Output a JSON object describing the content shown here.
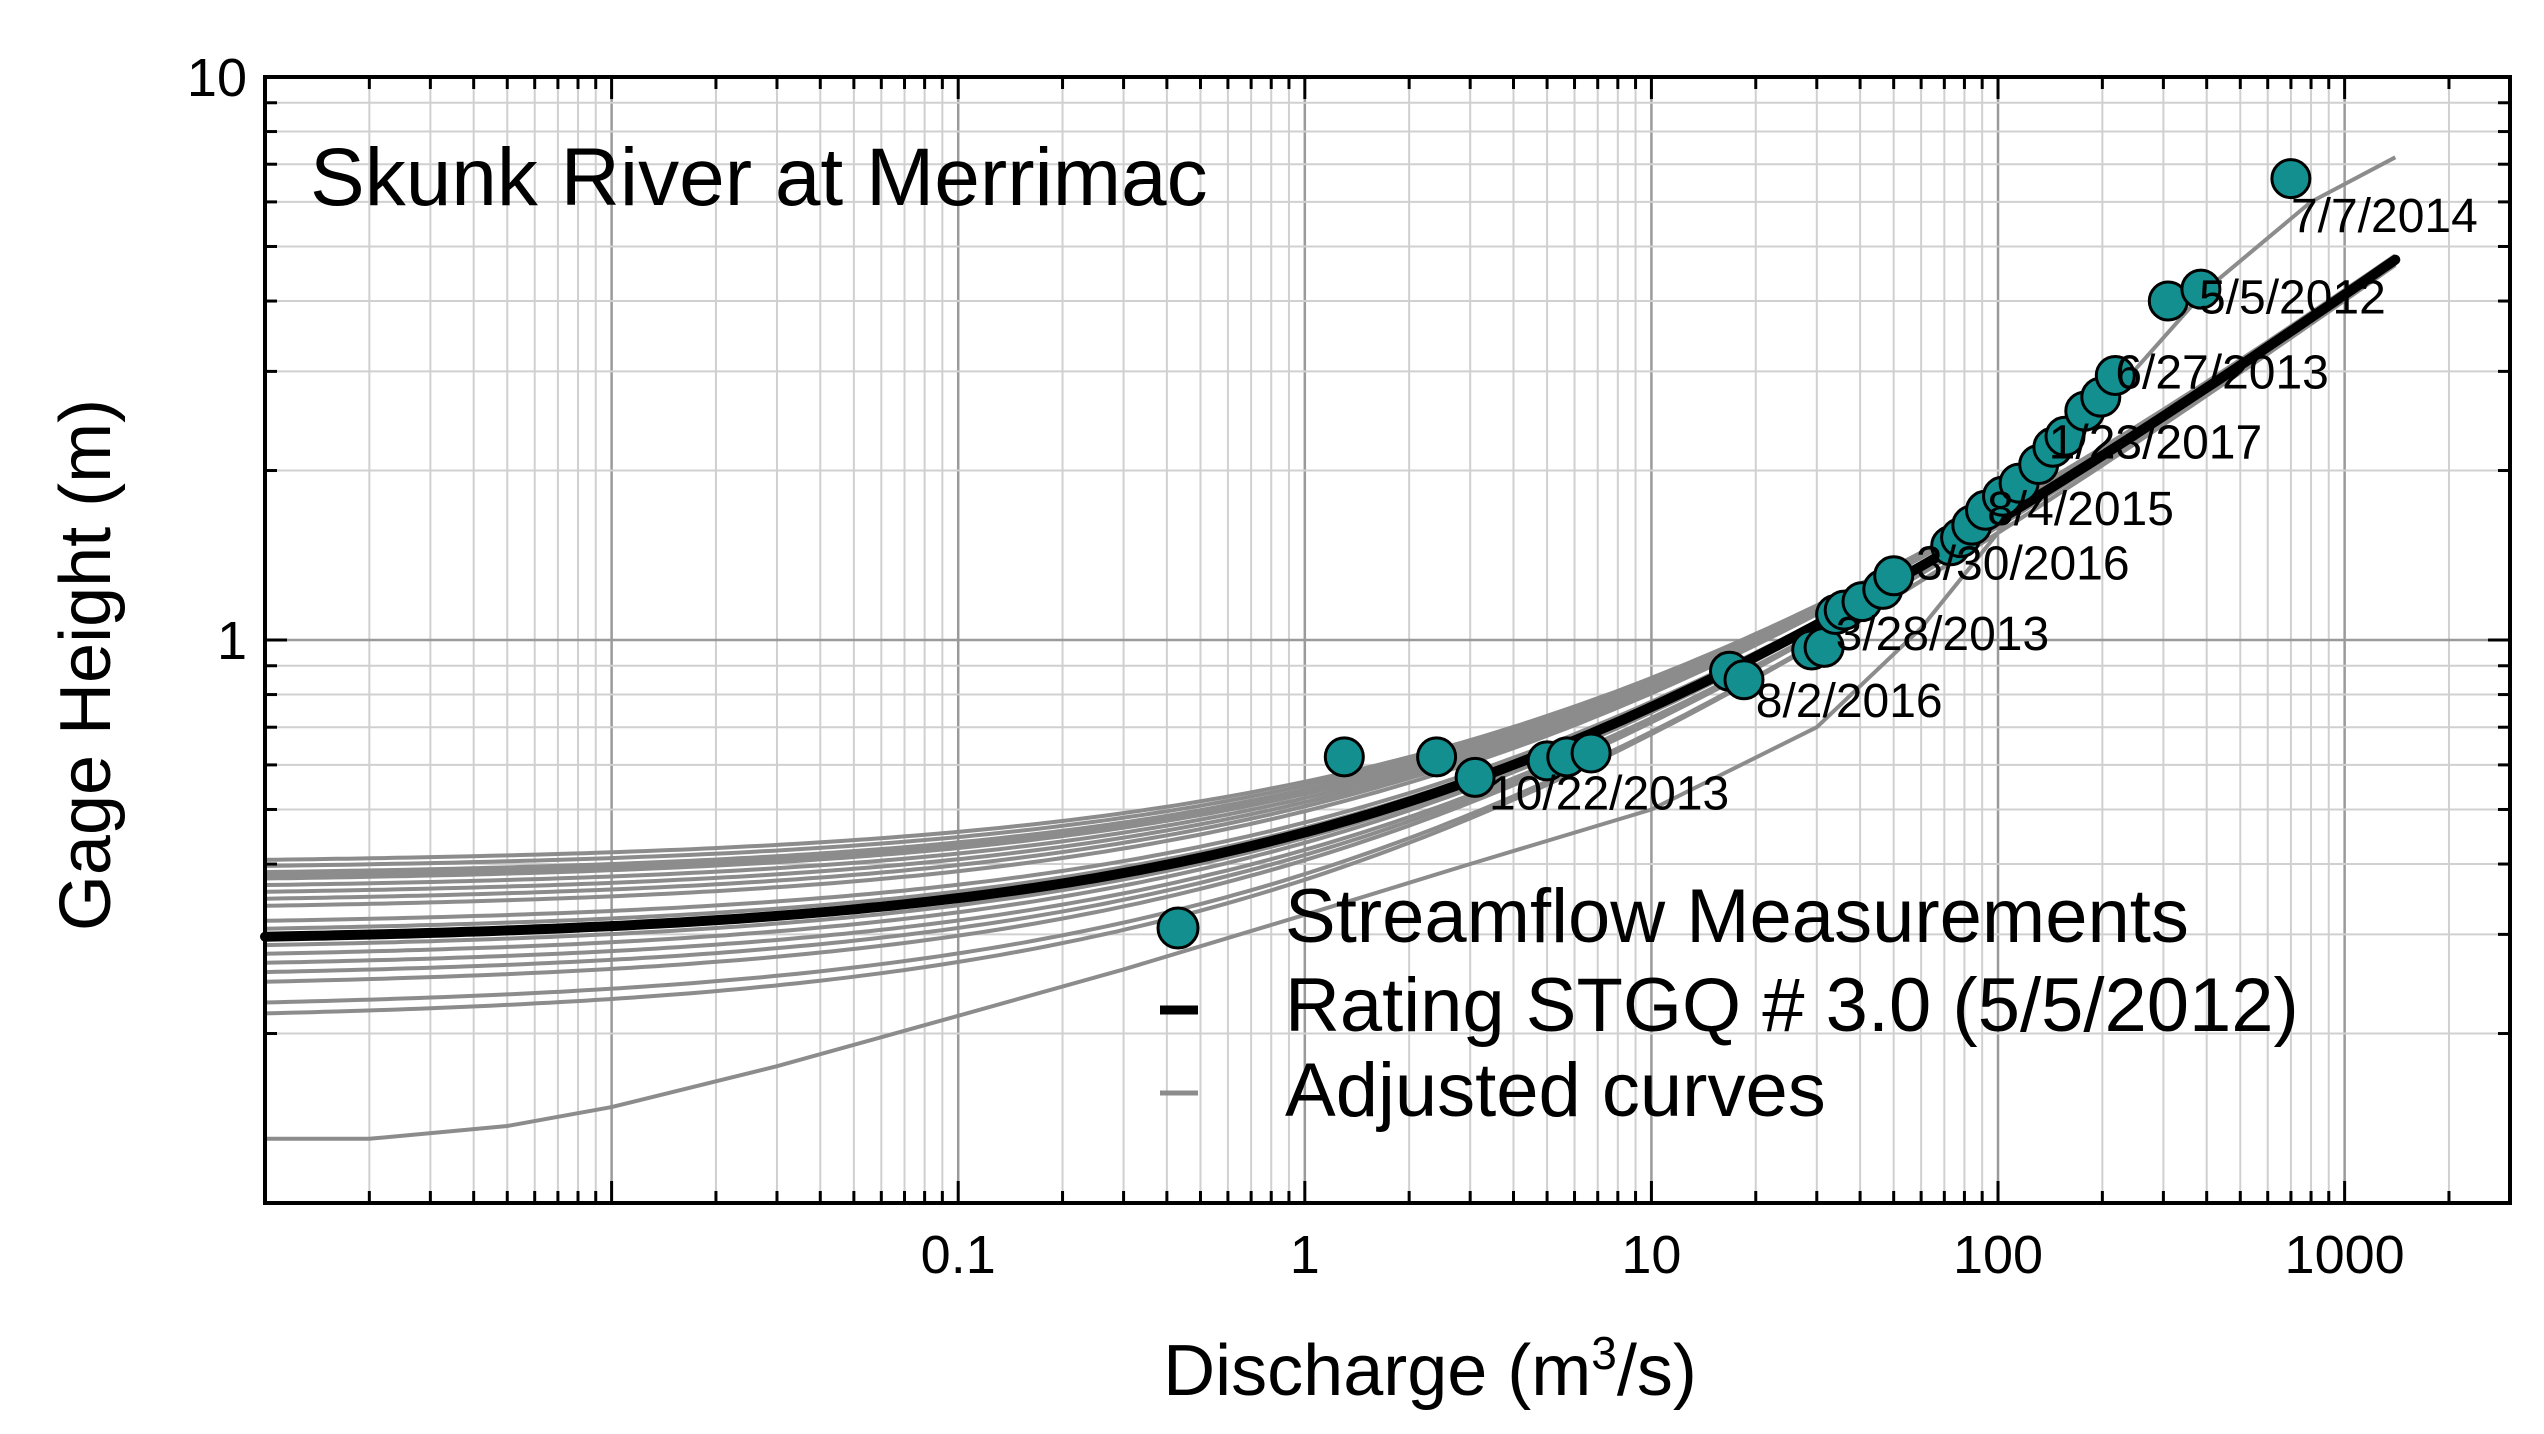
{
  "chart_data": {
    "type": "scatter",
    "title": "Skunk River at Merrimac",
    "xlabel": "Discharge (m³/s)",
    "xlabel_parts": {
      "pre": "Discharge (m",
      "sup": "3",
      "post": "/s)"
    },
    "ylabel": "Gage Height (m)",
    "x_scale": "log",
    "y_scale": "log",
    "xlim": [
      0.001,
      3000
    ],
    "ylim": [
      0.1,
      10
    ],
    "grid": true,
    "x_tick_labels": [
      {
        "value": 0.1,
        "label": "0.1"
      },
      {
        "value": 1,
        "label": "1"
      },
      {
        "value": 10,
        "label": "10"
      },
      {
        "value": 100,
        "label": "100"
      },
      {
        "value": 1000,
        "label": "1000"
      }
    ],
    "y_tick_labels": [
      {
        "value": 1,
        "label": "1"
      },
      {
        "value": 10,
        "label": "10"
      }
    ],
    "legend": {
      "position": "lower-right",
      "entries": [
        {
          "label": "Streamflow Measurements",
          "kind": "marker",
          "color": "#138f8f"
        },
        {
          "label": "Rating STGQ # 3.0 (5/5/2012)",
          "kind": "line",
          "color": "#000000"
        },
        {
          "label": "Adjusted curves",
          "kind": "line",
          "color": "#8c8c8c"
        }
      ]
    },
    "series": [
      {
        "name": "Streamflow Measurements",
        "color": "#138f8f",
        "edge_color": "#000000",
        "points": [
          [
            1.3,
            0.62
          ],
          [
            2.4,
            0.62
          ],
          [
            3.1,
            0.57
          ],
          [
            5.0,
            0.61
          ],
          [
            5.7,
            0.62
          ],
          [
            6.7,
            0.63
          ],
          [
            16.8,
            0.88
          ],
          [
            18.5,
            0.85
          ],
          [
            29.0,
            0.96
          ],
          [
            31.5,
            0.97
          ],
          [
            34.0,
            1.11
          ],
          [
            36.0,
            1.13
          ],
          [
            40.5,
            1.17
          ],
          [
            46.5,
            1.23
          ],
          [
            50.0,
            1.3
          ],
          [
            73.0,
            1.47
          ],
          [
            78.0,
            1.52
          ],
          [
            84.0,
            1.6
          ],
          [
            92.0,
            1.7
          ],
          [
            103.0,
            1.8
          ],
          [
            115.0,
            1.9
          ],
          [
            131.0,
            2.05
          ],
          [
            144.0,
            2.2
          ],
          [
            156.0,
            2.3
          ],
          [
            178.0,
            2.55
          ],
          [
            198.0,
            2.7
          ],
          [
            218.0,
            2.95
          ],
          [
            310.0,
            4.0
          ],
          [
            385.0,
            4.2
          ],
          [
            700.0,
            6.6
          ]
        ]
      },
      {
        "name": "Rating STGQ # 3.0 (5/5/2012)",
        "color": "#000000",
        "curve": {
          "e": 0.29,
          "a": 1.34,
          "b": 2.2
        }
      },
      {
        "name": "Adjusted curves",
        "color": "#8c8c8c",
        "curves": [
          {
            "e": 0.4,
            "a": 1.3,
            "b": 2.2
          },
          {
            "e": 0.39,
            "a": 1.31,
            "b": 2.2
          },
          {
            "e": 0.38,
            "a": 1.32,
            "b": 2.2
          },
          {
            "e": 0.375,
            "a": 1.33,
            "b": 2.2
          },
          {
            "e": 0.37,
            "a": 1.32,
            "b": 2.2
          },
          {
            "e": 0.36,
            "a": 1.33,
            "b": 2.2
          },
          {
            "e": 0.35,
            "a": 1.34,
            "b": 2.2
          },
          {
            "e": 0.34,
            "a": 1.35,
            "b": 2.2
          },
          {
            "e": 0.33,
            "a": 1.35,
            "b": 2.2
          },
          {
            "e": 0.31,
            "a": 1.33,
            "b": 2.2
          },
          {
            "e": 0.3,
            "a": 1.33,
            "b": 2.2
          },
          {
            "e": 0.28,
            "a": 1.34,
            "b": 2.2
          },
          {
            "e": 0.27,
            "a": 1.35,
            "b": 2.2
          },
          {
            "e": 0.26,
            "a": 1.33,
            "b": 2.2
          },
          {
            "e": 0.25,
            "a": 1.34,
            "b": 2.2
          },
          {
            "e": 0.24,
            "a": 1.35,
            "b": 2.2
          },
          {
            "e": 0.22,
            "a": 1.33,
            "b": 2.2
          },
          {
            "e": 0.21,
            "a": 1.34,
            "b": 2.2
          }
        ],
        "lowest_curve": [
          [
            0.001,
            0.13
          ],
          [
            0.002,
            0.13
          ],
          [
            0.005,
            0.137
          ],
          [
            0.01,
            0.148
          ],
          [
            0.03,
            0.175
          ],
          [
            0.1,
            0.215
          ],
          [
            0.3,
            0.26
          ],
          [
            1,
            0.325
          ],
          [
            3,
            0.4
          ],
          [
            10,
            0.5
          ],
          [
            30,
            0.7
          ],
          [
            60,
            1.05
          ],
          [
            100,
            1.55
          ],
          [
            200,
            2.6
          ],
          [
            400,
            4.2
          ],
          [
            800,
            6.0
          ],
          [
            1400,
            7.2
          ]
        ]
      }
    ],
    "annotations": [
      {
        "text": "7/7/2014",
        "x": 700,
        "y": 5.3
      },
      {
        "text": "5/5/2012",
        "x": 380,
        "y": 3.8
      },
      {
        "text": "6/27/2013",
        "x": 218,
        "y": 2.8
      },
      {
        "text": "1/23/2017",
        "x": 140,
        "y": 2.1
      },
      {
        "text": "8/4/2015",
        "x": 93,
        "y": 1.6
      },
      {
        "text": "3/30/2016",
        "x": 58,
        "y": 1.28
      },
      {
        "text": "3/28/2013",
        "x": 34,
        "y": 0.96
      },
      {
        "text": "8/2/2016",
        "x": 20,
        "y": 0.73
      },
      {
        "text": "10/22/2013",
        "x": 3.4,
        "y": 0.5
      }
    ]
  }
}
